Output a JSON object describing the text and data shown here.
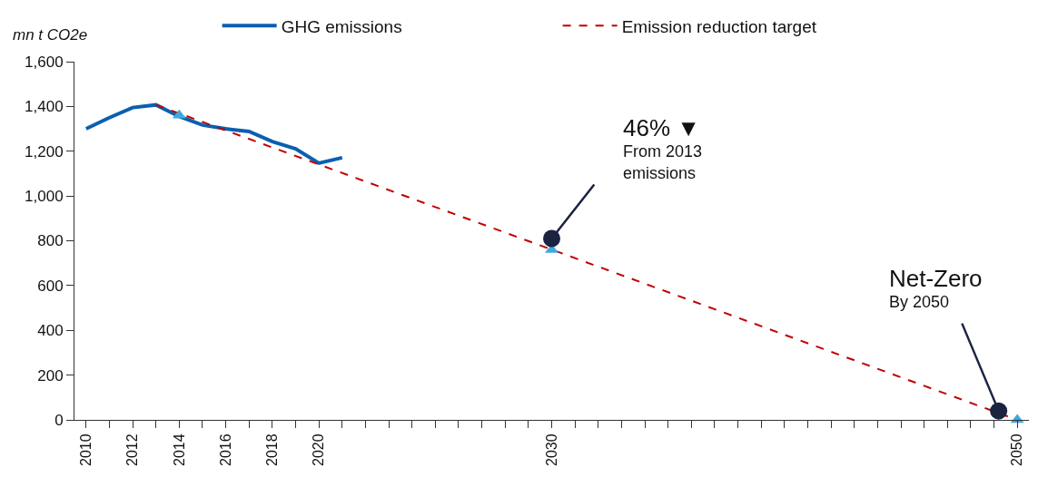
{
  "chart_data": {
    "type": "line",
    "ylabel": "mn t CO2e",
    "xlim": [
      2009.5,
      2050.5
    ],
    "xticks": [
      2010,
      {
        "value": 2011,
        "label": null
      },
      2012,
      {
        "value": 2013,
        "label": null
      },
      2014,
      {
        "value": 2015,
        "label": null
      },
      2016,
      {
        "value": 2017,
        "label": null
      },
      2018,
      {
        "value": 2019,
        "label": null
      },
      2020,
      {
        "value": 2021,
        "label": null
      },
      {
        "value": 2022,
        "label": null
      },
      {
        "value": 2023,
        "label": null
      },
      {
        "value": 2024,
        "label": null
      },
      {
        "value": 2025,
        "label": null
      },
      {
        "value": 2026,
        "label": null
      },
      {
        "value": 2027,
        "label": null
      },
      {
        "value": 2028,
        "label": null
      },
      {
        "value": 2029,
        "label": null
      },
      2030,
      {
        "value": 2031,
        "label": null
      },
      {
        "value": 2032,
        "label": null
      },
      {
        "value": 2033,
        "label": null
      },
      {
        "value": 2034,
        "label": null
      },
      {
        "value": 2035,
        "label": null
      },
      {
        "value": 2036,
        "label": null
      },
      {
        "value": 2037,
        "label": null
      },
      {
        "value": 2038,
        "label": null
      },
      {
        "value": 2039,
        "label": null
      },
      {
        "value": 2040,
        "label": null
      },
      {
        "value": 2041,
        "label": null
      },
      {
        "value": 2042,
        "label": null
      },
      {
        "value": 2043,
        "label": null
      },
      {
        "value": 2044,
        "label": null
      },
      {
        "value": 2045,
        "label": null
      },
      {
        "value": 2046,
        "label": null
      },
      {
        "value": 2047,
        "label": null
      },
      {
        "value": 2048,
        "label": null
      },
      {
        "value": 2049,
        "label": null
      },
      2050
    ],
    "ylim": [
      0,
      1600
    ],
    "yticks": [
      0,
      200,
      400,
      600,
      800,
      {
        "value": 1000,
        "label": "1,000"
      },
      {
        "value": 1200,
        "label": "1,200"
      },
      {
        "value": 1400,
        "label": "1,400"
      },
      {
        "value": 1600,
        "label": "1,600"
      }
    ],
    "grid": false,
    "legend": "top",
    "series": [
      {
        "name": "GHG emissions",
        "color": "#0b5fb0",
        "line_style": "solid",
        "marker": "none",
        "x": [
          2010,
          2011,
          2012,
          2013,
          2014,
          2015,
          2016,
          2017,
          2018,
          2019,
          2020,
          2021
        ],
        "values": [
          1300,
          1350,
          1395,
          1407,
          1355,
          1317,
          1300,
          1288,
          1243,
          1211,
          1147,
          1171
        ]
      },
      {
        "name": "Emission reduction target",
        "color": "#c00000",
        "line_style": "dashed",
        "marker": "none",
        "x": [
          2013,
          2050
        ],
        "values": [
          1407,
          0
        ]
      },
      {
        "type": "scatter",
        "color": "#3fa9dc",
        "marker": "triangle",
        "x": [
          2014,
          2030,
          2050
        ],
        "values": [
          1360,
          760,
          0
        ]
      }
    ],
    "annotations": [
      {
        "text": "46% ▼\nFrom 2013\nemissions",
        "x": 2030,
        "y": 810
      },
      {
        "text": "Net-Zero\nBy 2050",
        "x": 2049.2,
        "y": 40
      }
    ]
  }
}
